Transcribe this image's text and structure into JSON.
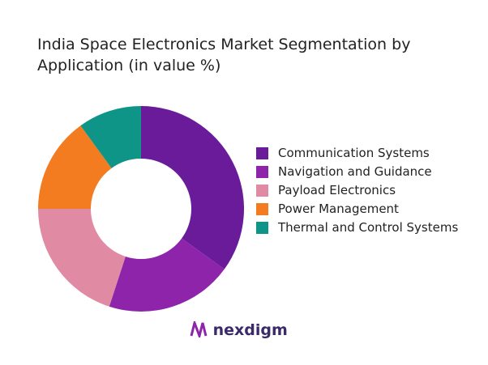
{
  "chart_data": {
    "type": "donut",
    "title": "India Space Electronics Market Segmentation by Application (in value %)",
    "categories": [
      "Communication Systems",
      "Navigation and Guidance",
      "Payload Electronics",
      "Power Management",
      "Thermal and Control Systems"
    ],
    "values": [
      35,
      20,
      20,
      15,
      10
    ],
    "colors": [
      "#6a1b9a",
      "#8e24aa",
      "#e08aa4",
      "#f47c20",
      "#0f9488"
    ]
  },
  "brand": "nexdigm"
}
